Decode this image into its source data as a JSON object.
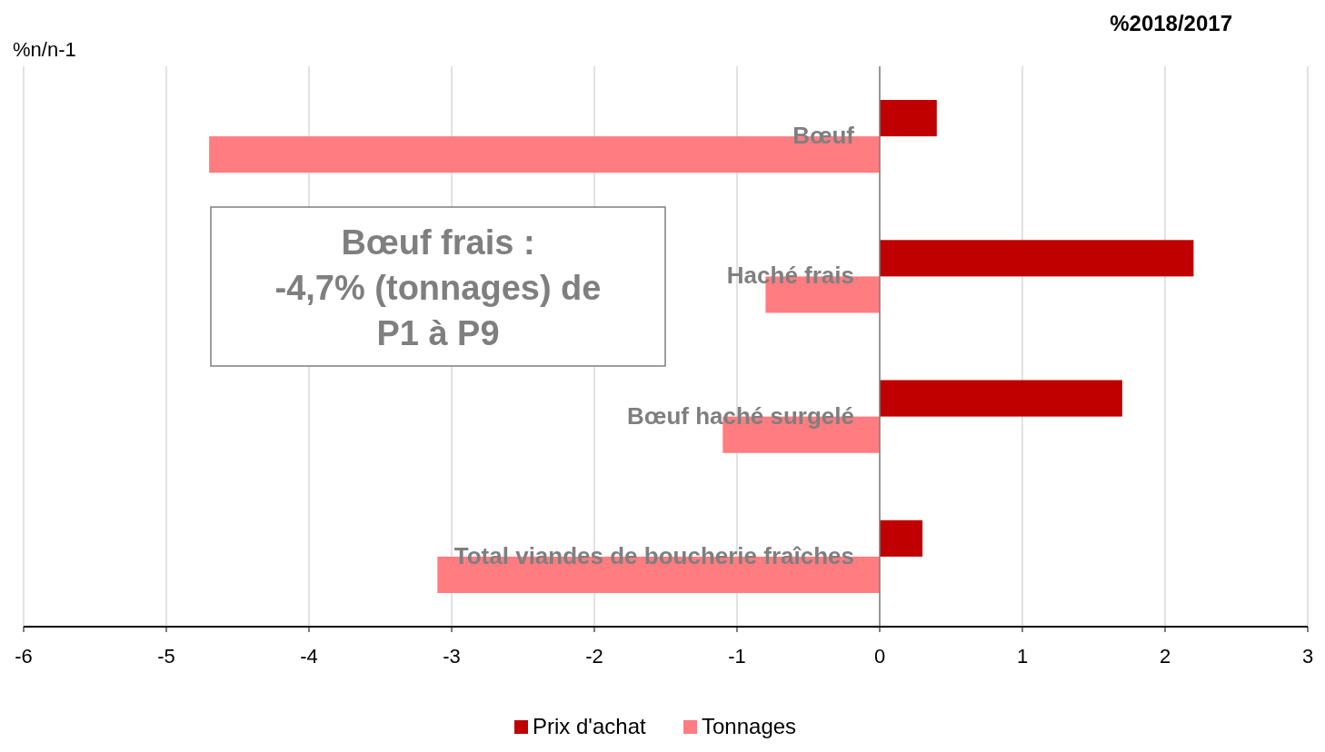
{
  "chart_data": {
    "type": "bar",
    "orientation": "horizontal",
    "title": "%2018/2017",
    "xlabel": "%n/n-1",
    "categories": [
      "Bœuf",
      "Haché frais",
      "Bœuf haché surgelé",
      "Total viandes de boucherie fraîches"
    ],
    "series": [
      {
        "name": "Prix d'achat",
        "color": "#c00000",
        "values": [
          0.4,
          2.2,
          1.7,
          0.3
        ]
      },
      {
        "name": "Tonnages",
        "color": "#ff7c80",
        "values": [
          -4.7,
          -0.8,
          -1.1,
          -3.1
        ]
      }
    ],
    "xlim": [
      -6,
      3
    ],
    "xticks": [
      -6,
      -5,
      -4,
      -3,
      -2,
      -1,
      0,
      1,
      2,
      3
    ],
    "grid": "x",
    "legend": "bottom",
    "annotations": [
      "Bœuf frais :\n-4,7% (tonnages) de\nP1 à P9"
    ]
  }
}
